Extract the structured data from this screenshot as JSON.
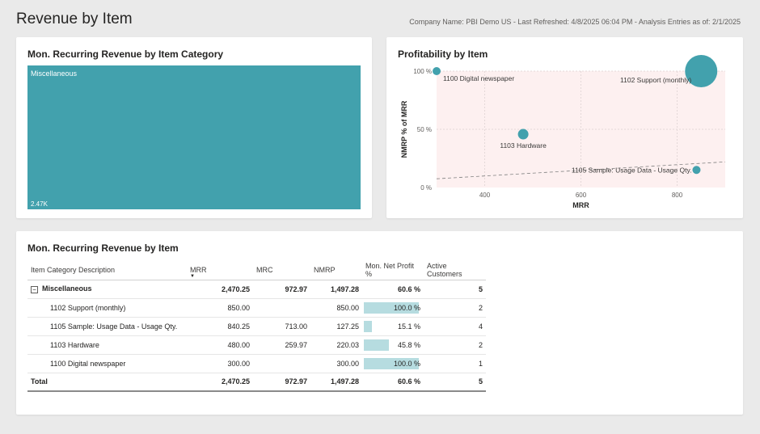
{
  "header": {
    "title": "Revenue by Item",
    "meta": "Company Name: PBI Demo US - Last Refreshed: 4/8/2025 06:04 PM - Analysis Entries as of: 2/1/2025"
  },
  "treemap": {
    "title": "Mon. Recurring Revenue by Item Category",
    "tile_label": "Miscellaneous",
    "tile_value": "2.47K",
    "color": "#42a1ad"
  },
  "scatter": {
    "title": "Profitability by Item"
  },
  "chart_data": {
    "type": "scatter",
    "xlabel": "MRR",
    "ylabel": "NMRP % of MRR",
    "xlim": [
      300,
      900
    ],
    "ylim": [
      0,
      100
    ],
    "x_ticks": [
      "400",
      "600",
      "800"
    ],
    "y_ticks": [
      "0 %",
      "50 %",
      "100 %"
    ],
    "point_color": "#42a1ad",
    "points": [
      {
        "label": "1100 Digital newspaper",
        "x": 300,
        "y": 100,
        "size": 1
      },
      {
        "label": "1102 Support (monthly)",
        "x": 850,
        "y": 100,
        "size": 4
      },
      {
        "label": "1103 Hardware",
        "x": 480,
        "y": 45.8,
        "size": 1.3
      },
      {
        "label": "1105 Sample: Usage Data - Usage Qty.",
        "x": 840.25,
        "y": 15.1,
        "size": 1
      }
    ],
    "trendline": {
      "y_start": 7.5,
      "y_end": 22
    }
  },
  "table": {
    "title": "Mon. Recurring Revenue by Item",
    "bar_color": "#b6dce0",
    "columns": [
      "Item Category Description",
      "MRR",
      "MRC",
      "NMRP",
      "Mon. Net Profit %",
      "Active Customers"
    ],
    "sort_indicator": "▼",
    "expand_symbol": "−",
    "group": {
      "label": "Miscellaneous",
      "mrr": "2,470.25",
      "mrc": "972.97",
      "nmrp": "1,497.28",
      "profit": "60.6 %",
      "customers": "5"
    },
    "rows": [
      {
        "label": "1102 Support (monthly)",
        "mrr": "850.00",
        "mrc": "",
        "nmrp": "850.00",
        "profit": "100.0 %",
        "profit_value": 100,
        "customers": "2"
      },
      {
        "label": "1105 Sample: Usage Data - Usage Qty.",
        "mrr": "840.25",
        "mrc": "713.00",
        "nmrp": "127.25",
        "profit": "15.1 %",
        "profit_value": 15.1,
        "customers": "4"
      },
      {
        "label": "1103 Hardware",
        "mrr": "480.00",
        "mrc": "259.97",
        "nmrp": "220.03",
        "profit": "45.8 %",
        "profit_value": 45.8,
        "customers": "2"
      },
      {
        "label": "1100 Digital newspaper",
        "mrr": "300.00",
        "mrc": "",
        "nmrp": "300.00",
        "profit": "100.0 %",
        "profit_value": 100,
        "customers": "1"
      }
    ],
    "total": {
      "label": "Total",
      "mrr": "2,470.25",
      "mrc": "972.97",
      "nmrp": "1,497.28",
      "profit": "60.6 %",
      "customers": "5"
    }
  }
}
